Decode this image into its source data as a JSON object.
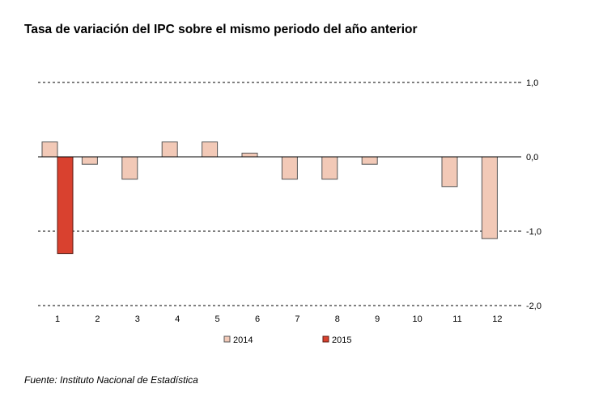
{
  "title": "Tasa de variación del IPC sobre el mismo periodo del año anterior",
  "source": "Fuente: Instituto Nacional de Estadística",
  "colors": {
    "series_2014_fill": "#f2c9b7",
    "series_2014_stroke": "#555555",
    "series_2015_fill": "#d9412f",
    "series_2015_stroke": "#5a1a12",
    "grid": "#000000"
  },
  "chart_data": {
    "type": "bar",
    "title": "Tasa de variación del IPC sobre el mismo periodo del año anterior",
    "categories": [
      "1",
      "2",
      "3",
      "4",
      "5",
      "6",
      "7",
      "8",
      "9",
      "10",
      "11",
      "12"
    ],
    "series": [
      {
        "name": "2014",
        "values": [
          0.2,
          -0.1,
          -0.3,
          0.2,
          0.2,
          0.05,
          -0.3,
          -0.3,
          -0.1,
          0.0,
          -0.4,
          -1.1
        ]
      },
      {
        "name": "2015",
        "values": [
          -1.3,
          null,
          null,
          null,
          null,
          null,
          null,
          null,
          null,
          null,
          null,
          null
        ]
      }
    ],
    "y_ticks": [
      "1,0",
      "0,0",
      "-1,0",
      "-2,0"
    ],
    "y_tick_values": [
      1.0,
      0.0,
      -1.0,
      -2.0
    ],
    "ylim": [
      -2.0,
      1.0
    ],
    "y_axis_side": "right",
    "grid": "dashed horizontal at ticks",
    "legend_position": "bottom",
    "xlabel": "",
    "ylabel": ""
  }
}
